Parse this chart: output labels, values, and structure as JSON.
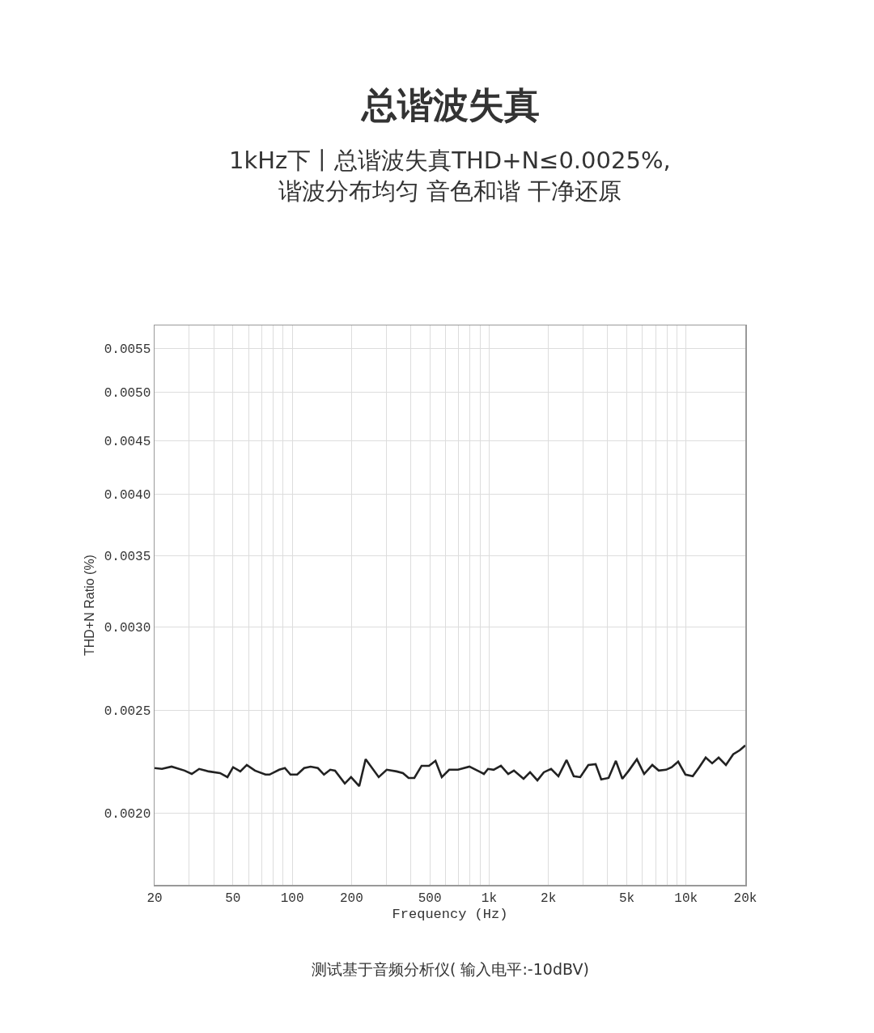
{
  "chart_data": {
    "type": "line",
    "title": "总谐波失真",
    "subtitle": "1kHz下丨总谐波失真THD+N≤0.0025%,\n谐波分布均匀 音色和谐 干净还原",
    "xlabel": "Frequency (Hz)",
    "ylabel": "THD+N Ratio (%)",
    "annotations": [
      "测试基于音频分析仪( 输入电平:-10dBV)"
    ],
    "log": "xy",
    "grid": true,
    "marker": "none",
    "line_style": "solid",
    "xlim": [
      20,
      20000
    ],
    "ylim": [
      0.00171,
      0.00578
    ],
    "xticks": [
      20,
      {
        "value": 30,
        "label": null
      },
      {
        "value": 40,
        "label": null
      },
      50,
      {
        "value": 60,
        "label": null
      },
      {
        "value": 70,
        "label": null
      },
      {
        "value": 80,
        "label": null
      },
      {
        "value": 90,
        "label": null
      },
      100,
      200,
      {
        "value": 300,
        "label": null
      },
      {
        "value": 400,
        "label": null
      },
      500,
      {
        "value": 600,
        "label": null
      },
      {
        "value": 700,
        "label": null
      },
      {
        "value": 800,
        "label": null
      },
      {
        "value": 900,
        "label": null
      },
      {
        "value": 1000,
        "label": "1k"
      },
      {
        "value": 2000,
        "label": "2k"
      },
      {
        "value": 3000,
        "label": null
      },
      {
        "value": 4000,
        "label": null
      },
      {
        "value": 5000,
        "label": "5k"
      },
      {
        "value": 6000,
        "label": null
      },
      {
        "value": 7000,
        "label": null
      },
      {
        "value": 8000,
        "label": null
      },
      {
        "value": 9000,
        "label": null
      },
      {
        "value": 10000,
        "label": "10k"
      },
      {
        "value": 20000,
        "label": "20k"
      }
    ],
    "yticks": [
      {
        "value": 0.002,
        "label": "0.0020"
      },
      0.0025,
      {
        "value": 0.003,
        "label": "0.0030"
      },
      0.0035,
      {
        "value": 0.004,
        "label": "0.0040"
      },
      0.0045,
      {
        "value": 0.005,
        "label": "0.0050"
      },
      0.0055
    ],
    "series": [
      {
        "color": "#222222",
        "x": [
          20,
          21.8,
          24.4,
          28.4,
          30.9,
          33.7,
          37.7,
          43.0,
          46.9,
          50.1,
          54.5,
          58.8,
          64.7,
          73.1,
          76.7,
          85.9,
          91.8,
          98.0,
          106,
          115,
          124,
          135,
          145,
          156,
          165,
          185,
          199,
          219,
          236,
          275,
          302,
          339,
          365,
          390,
          417,
          454,
          495,
          534,
          575,
          627,
          695,
          794,
          906,
          941,
          987,
          1054,
          1148,
          1250,
          1336,
          1496,
          1614,
          1758,
          1896,
          2064,
          2248,
          2472,
          2690,
          2902,
          3190,
          3474,
          3710,
          4042,
          4402,
          4748,
          5122,
          5628,
          6128,
          6738,
          7268,
          7914,
          8454,
          9120,
          9932,
          10814,
          11666,
          12584,
          13572,
          14638,
          15938,
          17356,
          18724,
          20000
        ],
        "values": [
          0.002205,
          0.002201,
          0.002212,
          0.002193,
          0.002177,
          0.002201,
          0.002189,
          0.002181,
          0.002162,
          0.002209,
          0.002189,
          0.00222,
          0.002193,
          0.002174,
          0.002174,
          0.002197,
          0.002205,
          0.002174,
          0.002174,
          0.002205,
          0.002212,
          0.002205,
          0.002174,
          0.002197,
          0.002193,
          0.002132,
          0.002162,
          0.00212,
          0.002248,
          0.002162,
          0.002197,
          0.002189,
          0.002181,
          0.002158,
          0.002158,
          0.002216,
          0.002216,
          0.00224,
          0.002162,
          0.002197,
          0.002197,
          0.002212,
          0.002185,
          0.002177,
          0.002201,
          0.002197,
          0.002216,
          0.002177,
          0.002193,
          0.002154,
          0.002185,
          0.002147,
          0.002185,
          0.002201,
          0.002166,
          0.002244,
          0.002166,
          0.002162,
          0.00222,
          0.002224,
          0.002151,
          0.002158,
          0.00224,
          0.002154,
          0.002193,
          0.002248,
          0.002177,
          0.00222,
          0.002193,
          0.002197,
          0.002209,
          0.002236,
          0.002174,
          0.002166,
          0.002209,
          0.002256,
          0.002228,
          0.002256,
          0.00222,
          0.002272,
          0.002292,
          0.002317
        ]
      }
    ]
  }
}
